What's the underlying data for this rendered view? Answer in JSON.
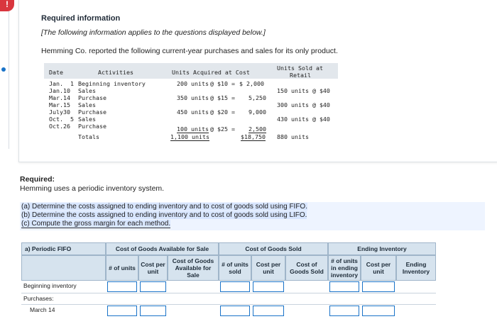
{
  "alert_icon": "!",
  "heading": "Required information",
  "note": "[The following information applies to the questions displayed below.]",
  "intro": "Hemming Co. reported the following current-year purchases and sales for its only product.",
  "data_table": {
    "headers": {
      "date": "Date",
      "activities": "Activities",
      "acquired": "Units Acquired at Cost",
      "sold_line1": "Units Sold at",
      "sold_line2": "Retail"
    },
    "rows": [
      {
        "date": "Jan.  1",
        "activity": "Beginning inventory",
        "units": "200 units",
        "cost": "@ $10 =",
        "total": "$ 2,000",
        "sold": ""
      },
      {
        "date": "Jan.10",
        "activity": "Sales",
        "units": "",
        "cost": "",
        "total": "",
        "sold": "150 units @ $40"
      },
      {
        "date": "Mar.14",
        "activity": "Purchase",
        "units": "350 units",
        "cost": "@ $15 =",
        "total": "5,250",
        "sold": ""
      },
      {
        "date": "Mar.15",
        "activity": "Sales",
        "units": "",
        "cost": "",
        "total": "",
        "sold": "300 units @ $40"
      },
      {
        "date": "July30",
        "activity": "Purchase",
        "units": "450 units",
        "cost": "@ $20 =",
        "total": "9,000",
        "sold": ""
      },
      {
        "date": "Oct.  5",
        "activity": "Sales",
        "units": "",
        "cost": "",
        "total": "",
        "sold": "430 units @ $40"
      },
      {
        "date": "Oct.26",
        "activity": "Purchase",
        "units": "100 units",
        "cost": "@ $25 =",
        "total": "2,500",
        "sold": ""
      }
    ],
    "totals": {
      "label": "Totals",
      "units": "1,100 units",
      "total": "$18,750",
      "sold": "880 units"
    }
  },
  "required_title": "Required:",
  "required_text": "Hemming uses a periodic inventory system.",
  "parts": [
    "(a) Determine the costs assigned to ending inventory and to cost of goods sold using FIFO.",
    "(b) Determine the costs assigned to ending inventory and to cost of goods sold using LIFO.",
    "(c) Compute the gross margin for each method."
  ],
  "answer_table": {
    "tab_label": "a) Periodic FIFO",
    "group_headers": [
      "Cost of Goods Available for Sale",
      "Cost of Goods Sold",
      "Ending Inventory"
    ],
    "sub_headers": [
      "# of units",
      "Cost per unit",
      "Cost of Goods Available for Sale",
      "# of units sold",
      "Cost per unit",
      "Cost of Goods Sold",
      "# of units in ending inventory",
      "Cost per unit",
      "Ending Inventory"
    ],
    "row_labels": [
      "Beginning inventory",
      "Purchases:",
      "March 14"
    ]
  }
}
